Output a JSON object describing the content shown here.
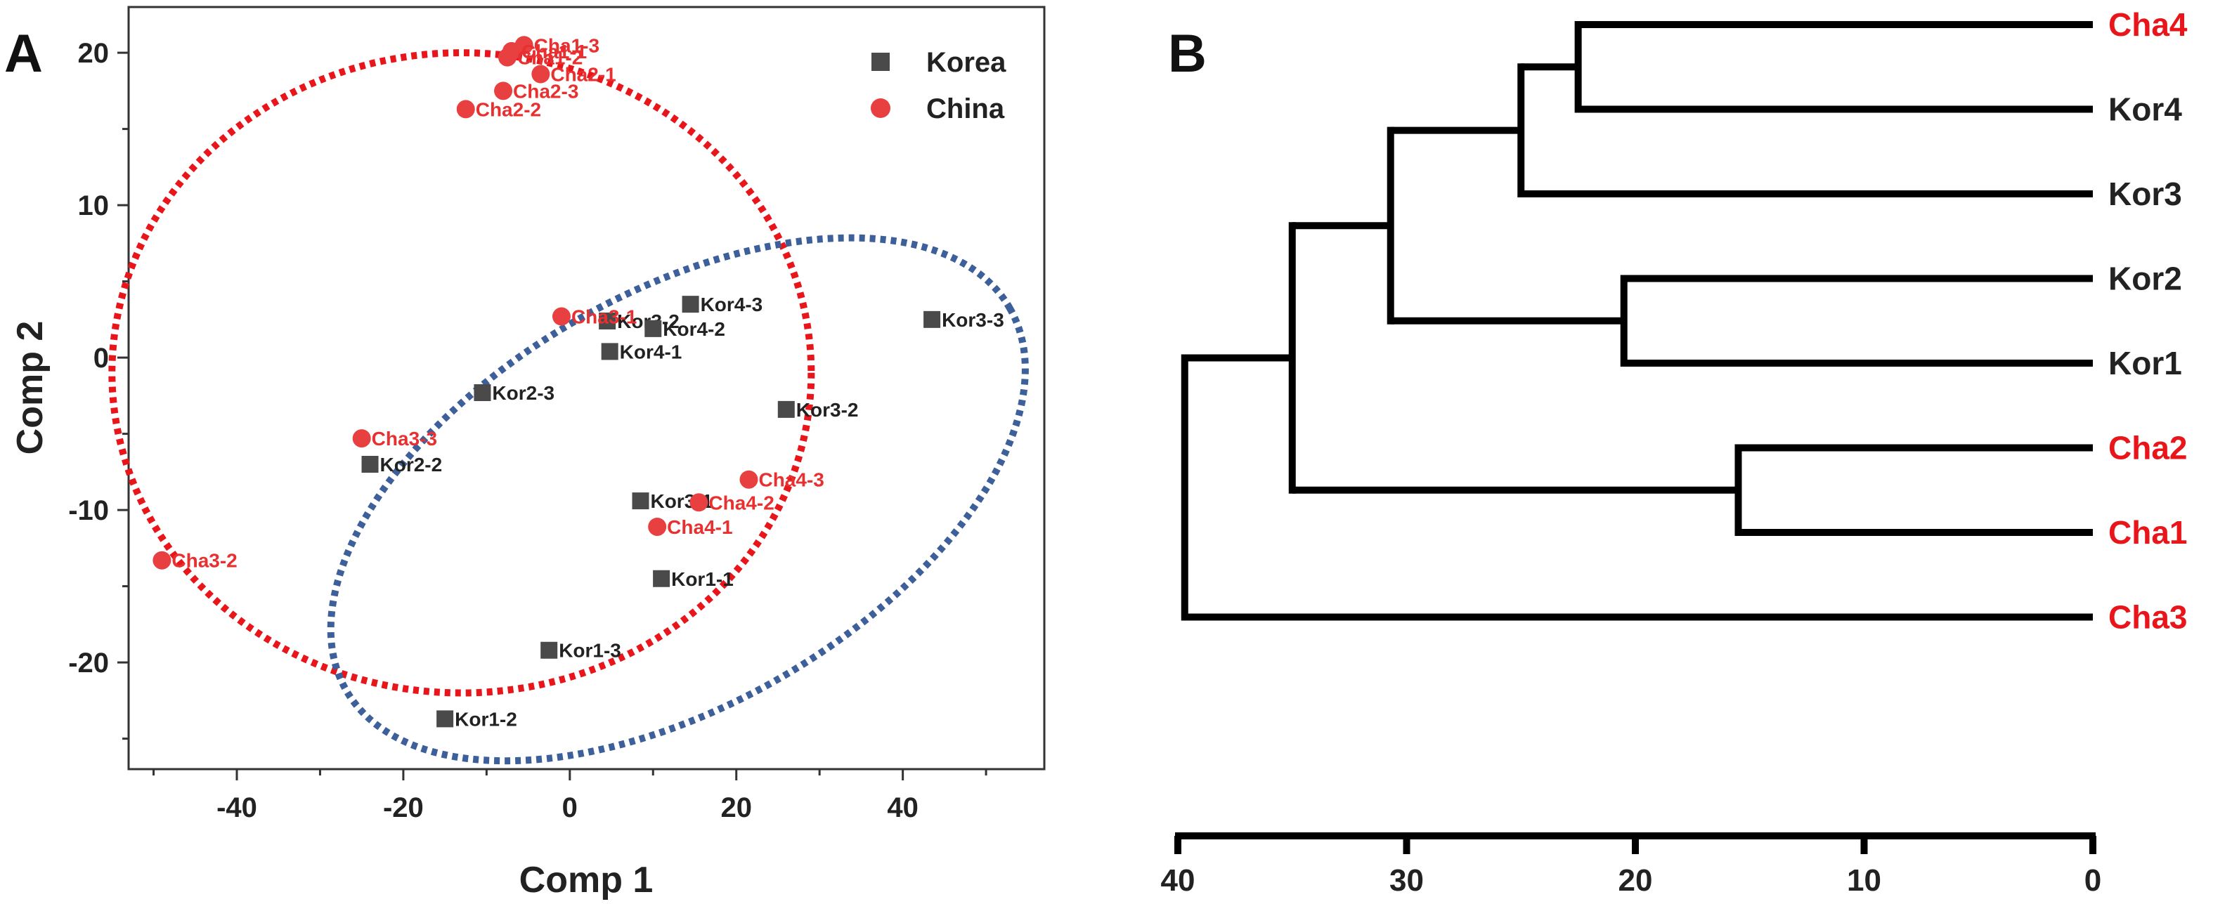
{
  "panels": {
    "a_label": "A",
    "b_label": "B"
  },
  "chart_data": [
    {
      "type": "scatter",
      "title": "",
      "xlabel": "Comp 1",
      "ylabel": "Comp 2",
      "xlim": [
        -53,
        57
      ],
      "ylim": [
        -27,
        23
      ],
      "xticks": [
        -40,
        -20,
        0,
        20,
        40
      ],
      "yticks": [
        -20,
        -10,
        0,
        10,
        20
      ],
      "xtick_labels": [
        "-40",
        "-20",
        "0",
        "20",
        "40"
      ],
      "ytick_labels": [
        "-20",
        "-10",
        "0",
        "10",
        "20"
      ],
      "legend_position": "top-right",
      "grid": false,
      "series": [
        {
          "name": "Korea",
          "marker": "square",
          "color": "#4a4a4a",
          "label_color": "#222222",
          "points": [
            {
              "label": "Kor4-3",
              "x": 14.5,
              "y": 3.5
            },
            {
              "label": "Kor3-2",
              "x": 4.5,
              "y": 2.4
            },
            {
              "label": "Kor4-2",
              "x": 10.0,
              "y": 1.9
            },
            {
              "label": "Kor4-1",
              "x": 4.8,
              "y": 0.4
            },
            {
              "label": "Kor3-3",
              "x": 43.5,
              "y": 2.5
            },
            {
              "label": "Kor2-3",
              "x": -10.5,
              "y": -2.3
            },
            {
              "label": "Kor3-2",
              "x": 26.0,
              "y": -3.4
            },
            {
              "label": "Kor2-2",
              "x": -24.0,
              "y": -7.0
            },
            {
              "label": "Kor3-1",
              "x": 8.5,
              "y": -9.4
            },
            {
              "label": "Kor1-1",
              "x": 11.0,
              "y": -14.5
            },
            {
              "label": "Kor1-3",
              "x": -2.5,
              "y": -19.2
            },
            {
              "label": "Kor1-2",
              "x": -15.0,
              "y": -23.7
            }
          ]
        },
        {
          "name": "China",
          "marker": "circle",
          "color": "#e84040",
          "label_color": "#e83030",
          "points": [
            {
              "label": "Cha1-3",
              "x": -5.5,
              "y": 20.5
            },
            {
              "label": "Cha1-1",
              "x": -7.0,
              "y": 20.1
            },
            {
              "label": "Cha1-2",
              "x": -7.5,
              "y": 19.7
            },
            {
              "label": "Cha2-1",
              "x": -3.5,
              "y": 18.6
            },
            {
              "label": "Cha2-3",
              "x": -8.0,
              "y": 17.5
            },
            {
              "label": "Cha2-2",
              "x": -12.5,
              "y": 16.3
            },
            {
              "label": "Cha3-1",
              "x": -1.0,
              "y": 2.7
            },
            {
              "label": "Cha3-3",
              "x": -25.0,
              "y": -5.3
            },
            {
              "label": "Cha4-3",
              "x": 21.5,
              "y": -8.0
            },
            {
              "label": "Cha4-2",
              "x": 15.5,
              "y": -9.5
            },
            {
              "label": "Cha4-1",
              "x": 10.5,
              "y": -11.1
            },
            {
              "label": "Cha3-2",
              "x": -49.0,
              "y": -13.3
            }
          ]
        }
      ],
      "ellipses": [
        {
          "group": "China",
          "color": "#e8151b",
          "cx": -13,
          "cy": -1,
          "rx": 42,
          "ry": 21,
          "rotation_deg": 0
        },
        {
          "group": "Korea",
          "color": "#3d5f9a",
          "cx": 13,
          "cy": -9.3,
          "rx": 46,
          "ry": 13.5,
          "rotation_deg": 30
        }
      ]
    },
    {
      "type": "dendrogram",
      "title": "",
      "xlabel": "",
      "ylabel": "",
      "xlim": [
        40,
        0
      ],
      "xticks": [
        40,
        30,
        20,
        10,
        0
      ],
      "xtick_labels": [
        "40",
        "30",
        "20",
        "10",
        "0"
      ],
      "leaves": [
        {
          "label": "Cha4",
          "color": "#e8151b"
        },
        {
          "label": "Kor4",
          "color": "#222222"
        },
        {
          "label": "Kor3",
          "color": "#222222"
        },
        {
          "label": "Kor2",
          "color": "#222222"
        },
        {
          "label": "Kor1",
          "color": "#222222"
        },
        {
          "label": "Cha2",
          "color": "#e8151b"
        },
        {
          "label": "Cha1",
          "color": "#e8151b"
        },
        {
          "label": "Cha3",
          "color": "#e8151b"
        }
      ],
      "merges": [
        {
          "left": 0,
          "right": 1,
          "height": 22.5
        },
        {
          "left": 8,
          "right": 2,
          "height": 25.0
        },
        {
          "left": 3,
          "right": 4,
          "height": 20.5
        },
        {
          "left": 9,
          "right": 10,
          "height": 30.7
        },
        {
          "left": 5,
          "right": 6,
          "height": 15.5
        },
        {
          "left": 11,
          "right": 12,
          "height": 35.0
        },
        {
          "left": 13,
          "right": 7,
          "height": 39.7
        }
      ]
    }
  ]
}
